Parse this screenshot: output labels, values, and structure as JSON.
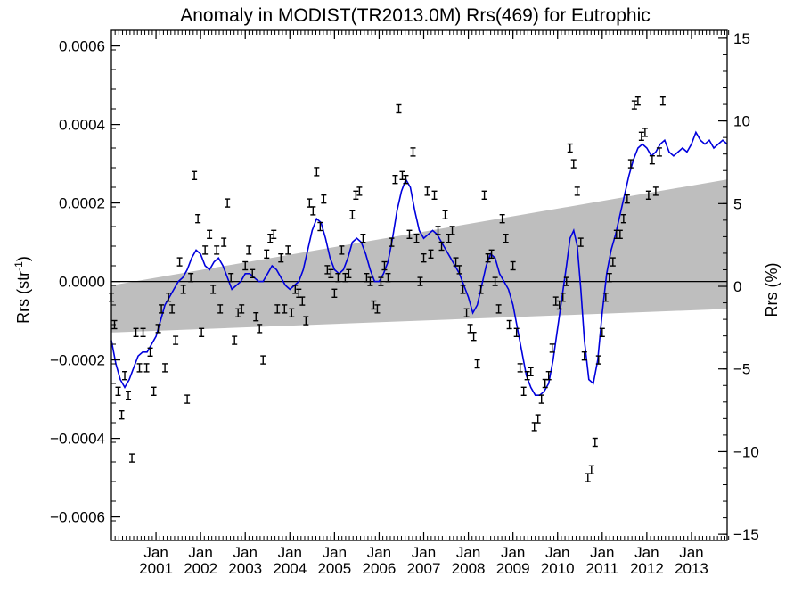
{
  "chart_data": {
    "type": "scatter",
    "title": "Anomaly in MODIST(TR2013.0M) Rrs(469) for Eutrophic",
    "ylabel_left": "Rrs (str",
    "ylabel_left_sup": "-1",
    "ylabel_left_close": ")",
    "ylabel_right": "Rrs (%)",
    "xlim": [
      2000.0,
      2013.8
    ],
    "ylim": [
      -0.00066,
      0.00064
    ],
    "ylim_right": [
      -15.37,
      15.48
    ],
    "grid": false,
    "zero_line": true,
    "colors": {
      "smooth": "#0000dd",
      "band": "#bebebe",
      "points": "#000000",
      "axes": "#000000"
    },
    "left_ticks": [
      {
        "value": -0.0006,
        "label": "−0.0006"
      },
      {
        "value": -0.0004,
        "label": "−0.0004"
      },
      {
        "value": -0.0002,
        "label": "−0.0002"
      },
      {
        "value": 0.0,
        "label": "0.0000"
      },
      {
        "value": 0.0002,
        "label": "0.0002"
      },
      {
        "value": 0.0004,
        "label": "0.0004"
      },
      {
        "value": 0.0006,
        "label": "0.0006"
      }
    ],
    "right_ticks": [
      {
        "value": -15,
        "label": "−15"
      },
      {
        "value": -10,
        "label": "−10"
      },
      {
        "value": -5,
        "label": "−5"
      },
      {
        "value": 0,
        "label": "0"
      },
      {
        "value": 5,
        "label": "5"
      },
      {
        "value": 10,
        "label": "10"
      },
      {
        "value": 15,
        "label": "15"
      }
    ],
    "x_ticks": [
      {
        "x": 2001.0,
        "month": "Jan",
        "year": "2001"
      },
      {
        "x": 2002.0,
        "month": "Jan",
        "year": "2002"
      },
      {
        "x": 2003.0,
        "month": "Jan",
        "year": "2003"
      },
      {
        "x": 2004.0,
        "month": "Jan",
        "year": "2004"
      },
      {
        "x": 2005.0,
        "month": "Jan",
        "year": "2005"
      },
      {
        "x": 2006.0,
        "month": "Jan",
        "year": "2006"
      },
      {
        "x": 2007.0,
        "month": "Jan",
        "year": "2007"
      },
      {
        "x": 2008.0,
        "month": "Jan",
        "year": "2008"
      },
      {
        "x": 2009.0,
        "month": "Jan",
        "year": "2009"
      },
      {
        "x": 2010.0,
        "month": "Jan",
        "year": "2010"
      },
      {
        "x": 2011.0,
        "month": "Jan",
        "year": "2011"
      },
      {
        "x": 2012.0,
        "month": "Jan",
        "year": "2012"
      },
      {
        "x": 2013.0,
        "month": "Jan",
        "year": "2013"
      }
    ],
    "band": {
      "upper": [
        [
          2000.0,
          -1e-05
        ],
        [
          2013.8,
          0.00026
        ]
      ],
      "lower": [
        [
          2000.0,
          -0.00013
        ],
        [
          2013.8,
          -7e-05
        ]
      ]
    },
    "points": [
      [
        2000.0,
        -4e-05
      ],
      [
        2000.07,
        -0.00011
      ],
      [
        2000.15,
        -0.00028
      ],
      [
        2000.23,
        -0.00034
      ],
      [
        2000.3,
        -0.00024
      ],
      [
        2000.38,
        -0.00029
      ],
      [
        2000.46,
        -0.00045
      ],
      [
        2000.55,
        -0.00013
      ],
      [
        2000.63,
        -0.00022
      ],
      [
        2000.71,
        -0.00013
      ],
      [
        2000.79,
        -0.00022
      ],
      [
        2000.87,
        -0.00018
      ],
      [
        2000.95,
        -0.00028
      ],
      [
        2001.05,
        -0.00012
      ],
      [
        2001.12,
        -7e-05
      ],
      [
        2001.2,
        -0.00022
      ],
      [
        2001.28,
        -4e-05
      ],
      [
        2001.36,
        -7e-05
      ],
      [
        2001.44,
        -0.00015
      ],
      [
        2001.53,
        5e-05
      ],
      [
        2001.61,
        -2e-05
      ],
      [
        2001.7,
        -0.0003
      ],
      [
        2001.78,
        1e-05
      ],
      [
        2001.86,
        0.00027
      ],
      [
        2001.94,
        0.00016
      ],
      [
        2002.02,
        -0.00013
      ],
      [
        2002.1,
        8e-05
      ],
      [
        2002.2,
        0.00012
      ],
      [
        2002.28,
        -2e-05
      ],
      [
        2002.36,
        8e-05
      ],
      [
        2002.44,
        -7e-05
      ],
      [
        2002.52,
        0.0001
      ],
      [
        2002.6,
        0.0002
      ],
      [
        2002.68,
        1e-05
      ],
      [
        2002.76,
        -0.00015
      ],
      [
        2002.84,
        -8e-05
      ],
      [
        2002.92,
        -7e-05
      ],
      [
        2003.0,
        4e-05
      ],
      [
        2003.08,
        8e-05
      ],
      [
        2003.16,
        2e-05
      ],
      [
        2003.24,
        -9e-05
      ],
      [
        2003.32,
        -0.00012
      ],
      [
        2003.4,
        -0.0002
      ],
      [
        2003.48,
        7e-05
      ],
      [
        2003.56,
        0.00011
      ],
      [
        2003.64,
        0.00012
      ],
      [
        2003.72,
        -7e-05
      ],
      [
        2003.8,
        6e-05
      ],
      [
        2003.88,
        -7e-05
      ],
      [
        2003.96,
        8e-05
      ],
      [
        2004.04,
        -8e-05
      ],
      [
        2004.12,
        -2e-05
      ],
      [
        2004.2,
        -3e-05
      ],
      [
        2004.28,
        -5e-05
      ],
      [
        2004.36,
        -0.0001
      ],
      [
        2004.44,
        0.0002
      ],
      [
        2004.52,
        0.00018
      ],
      [
        2004.6,
        0.00028
      ],
      [
        2004.68,
        0.00014
      ],
      [
        2004.76,
        0.00021
      ],
      [
        2004.84,
        3e-05
      ],
      [
        2004.92,
        2e-05
      ],
      [
        2005.0,
        -3e-05
      ],
      [
        2005.08,
        1e-05
      ],
      [
        2005.16,
        8e-05
      ],
      [
        2005.24,
        1e-05
      ],
      [
        2005.32,
        2e-05
      ],
      [
        2005.4,
        0.00017
      ],
      [
        2005.48,
        0.00022
      ],
      [
        2005.56,
        0.00023
      ],
      [
        2005.64,
        0.00011
      ],
      [
        2005.72,
        1e-05
      ],
      [
        2005.8,
        0.0
      ],
      [
        2005.88,
        -6e-05
      ],
      [
        2005.96,
        -7e-05
      ],
      [
        2006.04,
        0.0
      ],
      [
        2006.12,
        4e-05
      ],
      [
        2006.2,
        1e-05
      ],
      [
        2006.28,
        0.0001
      ],
      [
        2006.36,
        0.00026
      ],
      [
        2006.44,
        0.00044
      ],
      [
        2006.52,
        0.00027
      ],
      [
        2006.6,
        0.00026
      ],
      [
        2006.68,
        0.00012
      ],
      [
        2006.76,
        0.00033
      ],
      [
        2006.84,
        0.00011
      ],
      [
        2006.92,
        0.0
      ],
      [
        2007.0,
        6e-05
      ],
      [
        2007.08,
        0.00023
      ],
      [
        2007.16,
        7e-05
      ],
      [
        2007.24,
        0.00022
      ],
      [
        2007.32,
        0.00013
      ],
      [
        2007.4,
        9e-05
      ],
      [
        2007.48,
        0.00017
      ],
      [
        2007.56,
        0.00011
      ],
      [
        2007.64,
        0.00013
      ],
      [
        2007.72,
        5e-05
      ],
      [
        2007.8,
        3e-05
      ],
      [
        2007.88,
        -2e-05
      ],
      [
        2007.96,
        -8e-05
      ],
      [
        2008.04,
        -0.00012
      ],
      [
        2008.12,
        -0.00014
      ],
      [
        2008.2,
        -0.00021
      ],
      [
        2008.28,
        -2e-05
      ],
      [
        2008.36,
        0.00022
      ],
      [
        2008.44,
        6e-05
      ],
      [
        2008.52,
        7e-05
      ],
      [
        2008.6,
        0.0
      ],
      [
        2008.68,
        -7e-05
      ],
      [
        2008.76,
        0.00016
      ],
      [
        2008.84,
        0.00011
      ],
      [
        2008.92,
        -0.00011
      ],
      [
        2009.0,
        4e-05
      ],
      [
        2009.08,
        -0.00013
      ],
      [
        2009.16,
        -0.00022
      ],
      [
        2009.24,
        -0.00028
      ],
      [
        2009.32,
        -0.00024
      ],
      [
        2009.4,
        -0.00023
      ],
      [
        2009.48,
        -0.00037
      ],
      [
        2009.56,
        -0.00035
      ],
      [
        2009.64,
        -0.0003
      ],
      [
        2009.72,
        -0.00026
      ],
      [
        2009.8,
        -0.00024
      ],
      [
        2009.88,
        -0.00017
      ],
      [
        2009.96,
        -5e-05
      ],
      [
        2010.04,
        -6e-05
      ],
      [
        2010.12,
        -4e-05
      ],
      [
        2010.2,
        0.0
      ],
      [
        2010.28,
        0.00034
      ],
      [
        2010.36,
        0.0003
      ],
      [
        2010.44,
        0.00023
      ],
      [
        2010.52,
        0.0001
      ],
      [
        2010.6,
        -0.00019
      ],
      [
        2010.68,
        -0.0005
      ],
      [
        2010.76,
        -0.00048
      ],
      [
        2010.84,
        -0.00041
      ],
      [
        2010.92,
        -0.0002
      ],
      [
        2011.0,
        -0.00013
      ],
      [
        2011.08,
        -4e-05
      ],
      [
        2011.16,
        1e-05
      ],
      [
        2011.24,
        5e-05
      ],
      [
        2011.32,
        0.00012
      ],
      [
        2011.4,
        0.00012
      ],
      [
        2011.48,
        0.00016
      ],
      [
        2011.56,
        0.00021
      ],
      [
        2011.64,
        0.0003
      ],
      [
        2011.72,
        0.00045
      ],
      [
        2011.8,
        0.00046
      ],
      [
        2011.88,
        0.00037
      ],
      [
        2011.96,
        0.00038
      ],
      [
        2012.04,
        0.00022
      ],
      [
        2012.12,
        0.00031
      ],
      [
        2012.2,
        0.00023
      ],
      [
        2012.28,
        0.00033
      ],
      [
        2012.36,
        0.00046
      ]
    ],
    "smooth": [
      [
        2000.0,
        -0.00015
      ],
      [
        2000.1,
        -0.00021
      ],
      [
        2000.2,
        -0.00025
      ],
      [
        2000.3,
        -0.00027
      ],
      [
        2000.4,
        -0.00025
      ],
      [
        2000.5,
        -0.00022
      ],
      [
        2000.6,
        -0.00019
      ],
      [
        2000.7,
        -0.00018
      ],
      [
        2000.8,
        -0.00018
      ],
      [
        2000.9,
        -0.00016
      ],
      [
        2001.0,
        -0.00014
      ],
      [
        2001.1,
        -0.0001
      ],
      [
        2001.2,
        -6e-05
      ],
      [
        2001.3,
        -4e-05
      ],
      [
        2001.4,
        -2e-05
      ],
      [
        2001.5,
        0.0
      ],
      [
        2001.6,
        1e-05
      ],
      [
        2001.7,
        3e-05
      ],
      [
        2001.8,
        6e-05
      ],
      [
        2001.9,
        8e-05
      ],
      [
        2002.0,
        7e-05
      ],
      [
        2002.1,
        4e-05
      ],
      [
        2002.2,
        3e-05
      ],
      [
        2002.3,
        5e-05
      ],
      [
        2002.4,
        6e-05
      ],
      [
        2002.5,
        4e-05
      ],
      [
        2002.6,
        1e-05
      ],
      [
        2002.7,
        -2e-05
      ],
      [
        2002.8,
        -1e-05
      ],
      [
        2002.9,
        0.0
      ],
      [
        2003.0,
        2e-05
      ],
      [
        2003.1,
        2e-05
      ],
      [
        2003.2,
        1e-05
      ],
      [
        2003.3,
        0.0
      ],
      [
        2003.4,
        0.0
      ],
      [
        2003.5,
        2e-05
      ],
      [
        2003.6,
        4e-05
      ],
      [
        2003.7,
        3e-05
      ],
      [
        2003.8,
        1e-05
      ],
      [
        2003.9,
        -1e-05
      ],
      [
        2004.0,
        -2e-05
      ],
      [
        2004.1,
        -1e-05
      ],
      [
        2004.2,
        0.0
      ],
      [
        2004.3,
        3e-05
      ],
      [
        2004.4,
        8e-05
      ],
      [
        2004.5,
        0.00013
      ],
      [
        2004.6,
        0.00016
      ],
      [
        2004.7,
        0.00015
      ],
      [
        2004.8,
        0.00011
      ],
      [
        2004.9,
        6e-05
      ],
      [
        2005.0,
        3e-05
      ],
      [
        2005.1,
        2e-05
      ],
      [
        2005.2,
        3e-05
      ],
      [
        2005.3,
        6e-05
      ],
      [
        2005.4,
        0.0001
      ],
      [
        2005.5,
        0.00011
      ],
      [
        2005.6,
        0.0001
      ],
      [
        2005.7,
        7e-05
      ],
      [
        2005.8,
        3e-05
      ],
      [
        2005.9,
        0.0
      ],
      [
        2006.0,
        0.0
      ],
      [
        2006.1,
        2e-05
      ],
      [
        2006.2,
        5e-05
      ],
      [
        2006.3,
        0.00011
      ],
      [
        2006.4,
        0.00018
      ],
      [
        2006.5,
        0.00023
      ],
      [
        2006.6,
        0.00026
      ],
      [
        2006.7,
        0.00024
      ],
      [
        2006.8,
        0.00018
      ],
      [
        2006.9,
        0.00013
      ],
      [
        2007.0,
        0.00011
      ],
      [
        2007.1,
        0.00012
      ],
      [
        2007.2,
        0.00013
      ],
      [
        2007.3,
        0.00012
      ],
      [
        2007.4,
        0.0001
      ],
      [
        2007.5,
        8e-05
      ],
      [
        2007.6,
        6e-05
      ],
      [
        2007.7,
        4e-05
      ],
      [
        2007.8,
        2e-05
      ],
      [
        2007.9,
        -1e-05
      ],
      [
        2008.0,
        -4e-05
      ],
      [
        2008.1,
        -8e-05
      ],
      [
        2008.2,
        -6e-05
      ],
      [
        2008.3,
        -1e-05
      ],
      [
        2008.4,
        4e-05
      ],
      [
        2008.5,
        7e-05
      ],
      [
        2008.6,
        6e-05
      ],
      [
        2008.7,
        2e-05
      ],
      [
        2008.8,
        0.0
      ],
      [
        2008.9,
        -2e-05
      ],
      [
        2009.0,
        -6e-05
      ],
      [
        2009.1,
        -0.00012
      ],
      [
        2009.2,
        -0.00018
      ],
      [
        2009.3,
        -0.00024
      ],
      [
        2009.4,
        -0.00027
      ],
      [
        2009.5,
        -0.00029
      ],
      [
        2009.6,
        -0.00029
      ],
      [
        2009.7,
        -0.00028
      ],
      [
        2009.8,
        -0.00026
      ],
      [
        2009.9,
        -0.0002
      ],
      [
        2010.0,
        -0.00012
      ],
      [
        2010.1,
        -4e-05
      ],
      [
        2010.2,
        4e-05
      ],
      [
        2010.28,
        0.00011
      ],
      [
        2010.36,
        0.00013
      ],
      [
        2010.44,
        9e-05
      ],
      [
        2010.52,
        -2e-05
      ],
      [
        2010.6,
        -0.00015
      ],
      [
        2010.7,
        -0.00025
      ],
      [
        2010.8,
        -0.00026
      ],
      [
        2010.9,
        -0.0002
      ],
      [
        2011.0,
        -8e-05
      ],
      [
        2011.1,
        2e-05
      ],
      [
        2011.2,
        8e-05
      ],
      [
        2011.3,
        0.00012
      ],
      [
        2011.4,
        0.00017
      ],
      [
        2011.5,
        0.00022
      ],
      [
        2011.6,
        0.00027
      ],
      [
        2011.7,
        0.00031
      ],
      [
        2011.8,
        0.00034
      ],
      [
        2011.9,
        0.00035
      ],
      [
        2012.0,
        0.00034
      ],
      [
        2012.1,
        0.00032
      ],
      [
        2012.2,
        0.00033
      ],
      [
        2012.3,
        0.00035
      ],
      [
        2012.4,
        0.00036
      ],
      [
        2012.5,
        0.00033
      ],
      [
        2012.6,
        0.00032
      ],
      [
        2012.7,
        0.00033
      ],
      [
        2012.8,
        0.00034
      ],
      [
        2012.9,
        0.00033
      ],
      [
        2013.0,
        0.00035
      ],
      [
        2013.1,
        0.00038
      ],
      [
        2013.2,
        0.00036
      ],
      [
        2013.3,
        0.00035
      ],
      [
        2013.4,
        0.00036
      ],
      [
        2013.5,
        0.00034
      ],
      [
        2013.6,
        0.00035
      ],
      [
        2013.7,
        0.00036
      ],
      [
        2013.8,
        0.00035
      ]
    ]
  }
}
